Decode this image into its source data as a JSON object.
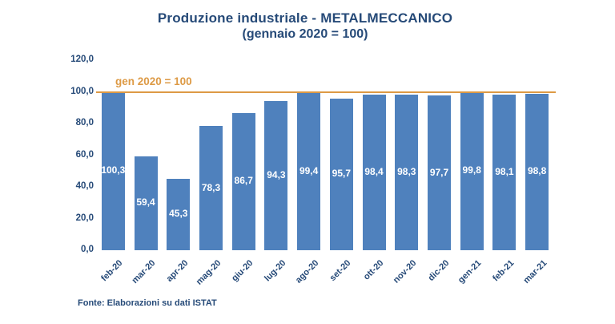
{
  "title": {
    "line1": "Produzione industriale - METALMECCANICO",
    "line2": "(gennaio 2020 = 100)"
  },
  "footer": {
    "source": "Fonte: Elaborazioni su dati ISTAT"
  },
  "colors": {
    "background": "#ffffff",
    "bar": "#4f81bd",
    "title_text": "#264a78",
    "axis_text": "#264a78",
    "value_label_text": "#ffffff",
    "reference_orange": "#dd9a45"
  },
  "chart_data": {
    "type": "bar",
    "title": "Produzione industriale - METALMECCANICO",
    "subtitle": "(gennaio 2020 = 100)",
    "categories": [
      "feb-20",
      "mar-20",
      "apr-20",
      "mag-20",
      "giu-20",
      "lug-20",
      "ago-20",
      "set-20",
      "ott-20",
      "nov-20",
      "dic-20",
      "gen-21",
      "feb-21",
      "mar-21"
    ],
    "values": [
      100.3,
      59.4,
      45.3,
      78.3,
      86.7,
      94.3,
      99.4,
      95.7,
      98.4,
      98.3,
      97.7,
      99.8,
      98.1,
      98.8
    ],
    "value_labels": [
      "100,3",
      "59,4",
      "45,3",
      "78,3",
      "86,7",
      "94,3",
      "99,4",
      "95,7",
      "98,4",
      "98,3",
      "97,7",
      "99,8",
      "98,1",
      "98,8"
    ],
    "xlabel": "",
    "ylabel": "",
    "ylim": [
      0,
      120
    ],
    "y_ticks": [
      120,
      100,
      80,
      60,
      40,
      20,
      0
    ],
    "y_tick_labels": [
      "120,0",
      "100,0",
      "80,0",
      "60,0",
      "40,0",
      "20,0",
      "0,0"
    ],
    "grid": false,
    "legend": "none",
    "reference_line": {
      "value": 100,
      "label": "gen 2020 = 100"
    },
    "source": "Fonte: Elaborazioni su dati ISTAT"
  }
}
